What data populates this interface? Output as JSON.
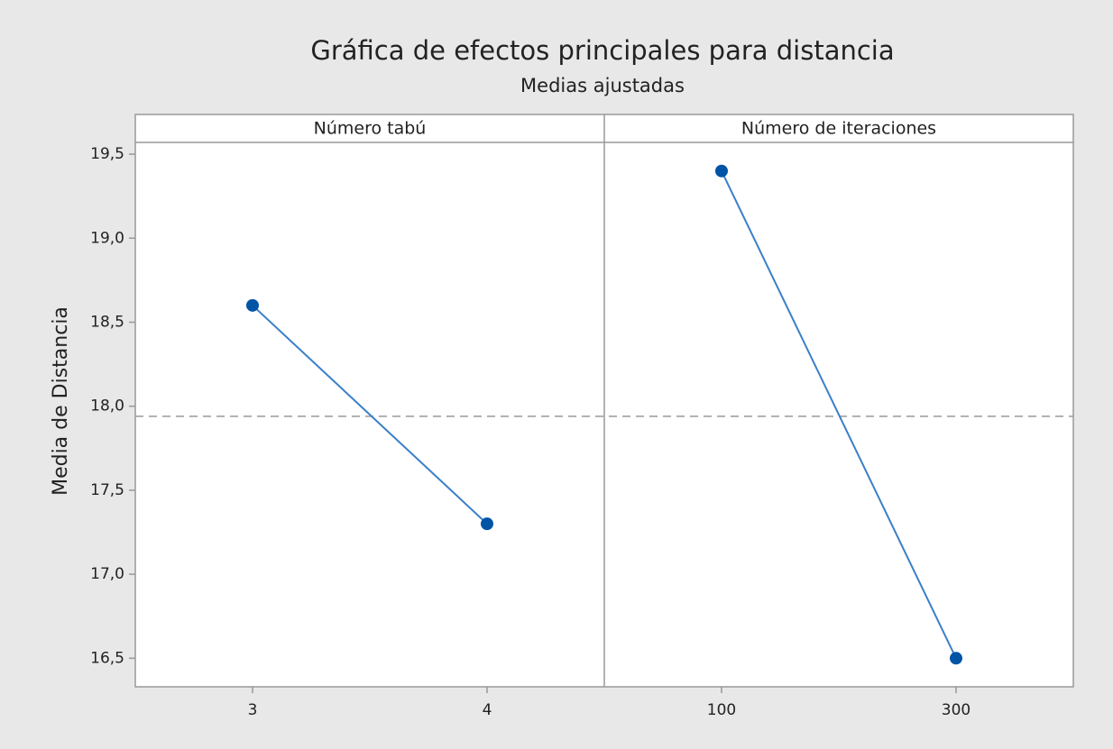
{
  "chart_data": {
    "type": "line",
    "title": "Gráfica de efectos principales para distancia",
    "subtitle": "Medias ajustadas",
    "y_label": "Media de Distancia",
    "ylim": [
      16.33,
      19.57
    ],
    "yticks": [
      {
        "value": 16.5,
        "label": "16,5"
      },
      {
        "value": 17,
        "label": "17,0"
      },
      {
        "value": 17.5,
        "label": "17,5"
      },
      {
        "value": 18,
        "label": "18,0"
      },
      {
        "value": 18.5,
        "label": "18,5"
      },
      {
        "value": 19,
        "label": "19,0"
      },
      {
        "value": 19.5,
        "label": "19,5"
      }
    ],
    "reference_line": 17.94,
    "line_color": "#3a7fc9",
    "marker_color": "#0054a6",
    "panels": [
      {
        "title": "Número tabú",
        "categories": [
          "3",
          "4"
        ],
        "values": [
          18.6,
          17.3
        ]
      },
      {
        "title": "Número de iteraciones",
        "categories": [
          "100",
          "300"
        ],
        "values": [
          19.4,
          16.5
        ]
      }
    ]
  }
}
